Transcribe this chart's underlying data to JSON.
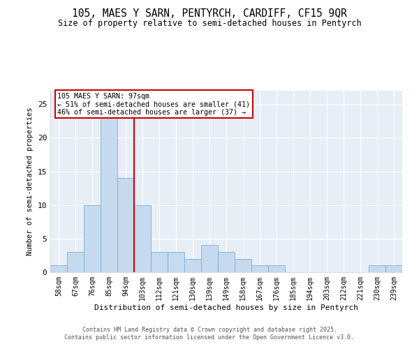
{
  "title_line1": "105, MAES Y SARN, PENTYRCH, CARDIFF, CF15 9QR",
  "title_line2": "Size of property relative to semi-detached houses in Pentyrch",
  "xlabel": "Distribution of semi-detached houses by size in Pentyrch",
  "ylabel": "Number of semi-detached properties",
  "categories": [
    "58sqm",
    "67sqm",
    "76sqm",
    "85sqm",
    "94sqm",
    "103sqm",
    "112sqm",
    "121sqm",
    "130sqm",
    "139sqm",
    "149sqm",
    "158sqm",
    "167sqm",
    "176sqm",
    "185sqm",
    "194sqm",
    "203sqm",
    "212sqm",
    "221sqm",
    "230sqm",
    "239sqm"
  ],
  "values": [
    1,
    3,
    10,
    23,
    14,
    10,
    3,
    3,
    2,
    4,
    3,
    2,
    1,
    1,
    0,
    0,
    0,
    0,
    0,
    1,
    1
  ],
  "bar_color": "#c5d9ef",
  "bar_edge_color": "#7aafd4",
  "vline_x": 4.5,
  "vline_color": "#cc0000",
  "annotation_title": "105 MAES Y SARN: 97sqm",
  "annotation_line2": "← 51% of semi-detached houses are smaller (41)",
  "annotation_line3": "46% of semi-detached houses are larger (37) →",
  "annotation_box_color": "#ffffff",
  "annotation_box_edge": "#cc0000",
  "ylim": [
    0,
    27
  ],
  "yticks": [
    0,
    5,
    10,
    15,
    20,
    25
  ],
  "footer_line1": "Contains HM Land Registry data © Crown copyright and database right 2025.",
  "footer_line2": "Contains public sector information licensed under the Open Government Licence v3.0.",
  "bg_color": "#e8eef5",
  "fig_bg_color": "#ffffff",
  "grid_color": "#ffffff"
}
